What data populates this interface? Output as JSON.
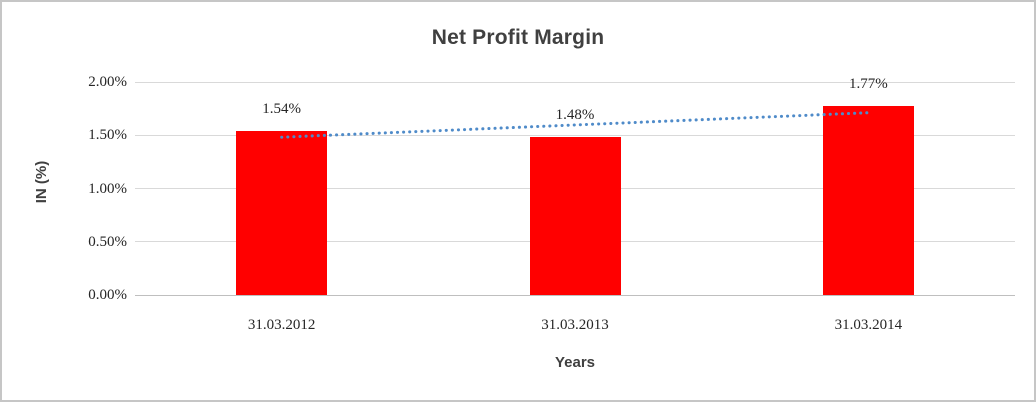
{
  "chart_data": {
    "type": "bar",
    "title": "Net Profit Margin",
    "xlabel": "Years",
    "ylabel": "IN (%)",
    "categories": [
      "31.03.2012",
      "31.03.2013",
      "31.03.2014"
    ],
    "values": [
      1.54,
      1.48,
      1.77
    ],
    "data_labels": [
      "1.54%",
      "1.48%",
      "1.77%"
    ],
    "ylim": [
      0,
      2
    ],
    "yticks": [
      0,
      0.5,
      1,
      1.5,
      2
    ],
    "ytick_labels": [
      "0.00%",
      "0.50%",
      "1.00%",
      "1.50%",
      "2.00%"
    ],
    "grid": true,
    "legend": false,
    "bar_color": "#ff0000",
    "trendline": {
      "type": "linear",
      "style": "dotted",
      "color": "#4f8bc9"
    },
    "text_colors": {
      "title": "#404040",
      "axis_titles": "#404040",
      "tick_labels": "#262626"
    }
  }
}
